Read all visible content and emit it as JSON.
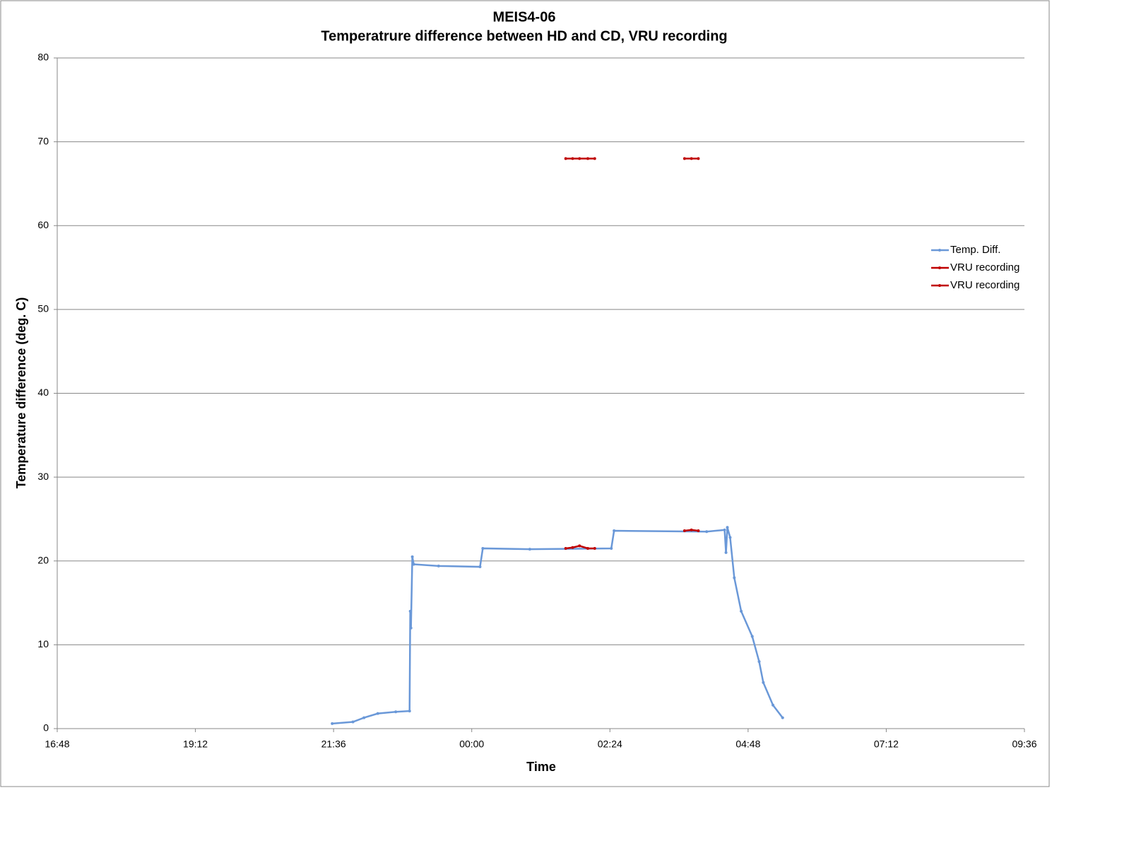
{
  "chart_data": {
    "type": "line",
    "title": "MEIS4-06",
    "subtitle": "Temperatrure difference between HD and CD, VRU recording",
    "x_label": "Time",
    "y_label": "Temperature difference (deg. C)",
    "xlim": [
      0.7,
      1.4
    ],
    "xticks": [
      {
        "value": 0.7,
        "label": "16:48"
      },
      {
        "value": 0.8,
        "label": "19:12"
      },
      {
        "value": 0.9,
        "label": "21:36"
      },
      {
        "value": 1.0,
        "label": "00:00"
      },
      {
        "value": 1.1,
        "label": "02:24"
      },
      {
        "value": 1.2,
        "label": "04:48"
      },
      {
        "value": 1.3,
        "label": "07:12"
      },
      {
        "value": 1.4,
        "label": "09:36"
      }
    ],
    "ylim": [
      0,
      80
    ],
    "yticks": [
      0,
      10,
      20,
      30,
      40,
      50,
      60,
      70,
      80
    ],
    "grid": true,
    "legend": "right",
    "series": [
      {
        "name": "Temp. Diff.",
        "color": "#6a98d8",
        "x": [
          0.899,
          0.914,
          0.922,
          0.932,
          0.945,
          0.955,
          0.9555,
          0.956,
          0.957,
          0.958,
          0.976,
          1.006,
          1.008,
          1.042,
          1.101,
          1.103,
          1.17,
          1.183,
          1.184,
          1.185,
          1.187,
          1.19,
          1.195,
          1.203,
          1.208,
          1.211,
          1.218,
          1.225
        ],
        "values": [
          0.6,
          0.8,
          1.3,
          1.8,
          2.0,
          2.1,
          14,
          12,
          20.5,
          19.6,
          19.4,
          19.3,
          21.5,
          21.4,
          21.5,
          23.6,
          23.5,
          23.7,
          21.0,
          24.0,
          22.8,
          18,
          14,
          11,
          8,
          5.5,
          2.8,
          1.3
        ]
      },
      {
        "name": "VRU recording",
        "color": "#c00000",
        "x": [
          1.068,
          1.073,
          1.078,
          1.084,
          1.089,
          1.12,
          1.154,
          1.159,
          1.164
        ],
        "values": [
          68,
          68,
          68,
          68,
          68,
          null,
          68,
          68,
          68
        ]
      },
      {
        "name": "VRU recording",
        "color": "#c00000",
        "x": [
          1.068,
          1.073,
          1.078,
          1.084,
          1.089,
          1.12,
          1.154,
          1.159,
          1.164
        ],
        "values": [
          21.5,
          21.6,
          21.8,
          21.5,
          21.5,
          null,
          23.6,
          23.7,
          23.6
        ]
      }
    ]
  }
}
